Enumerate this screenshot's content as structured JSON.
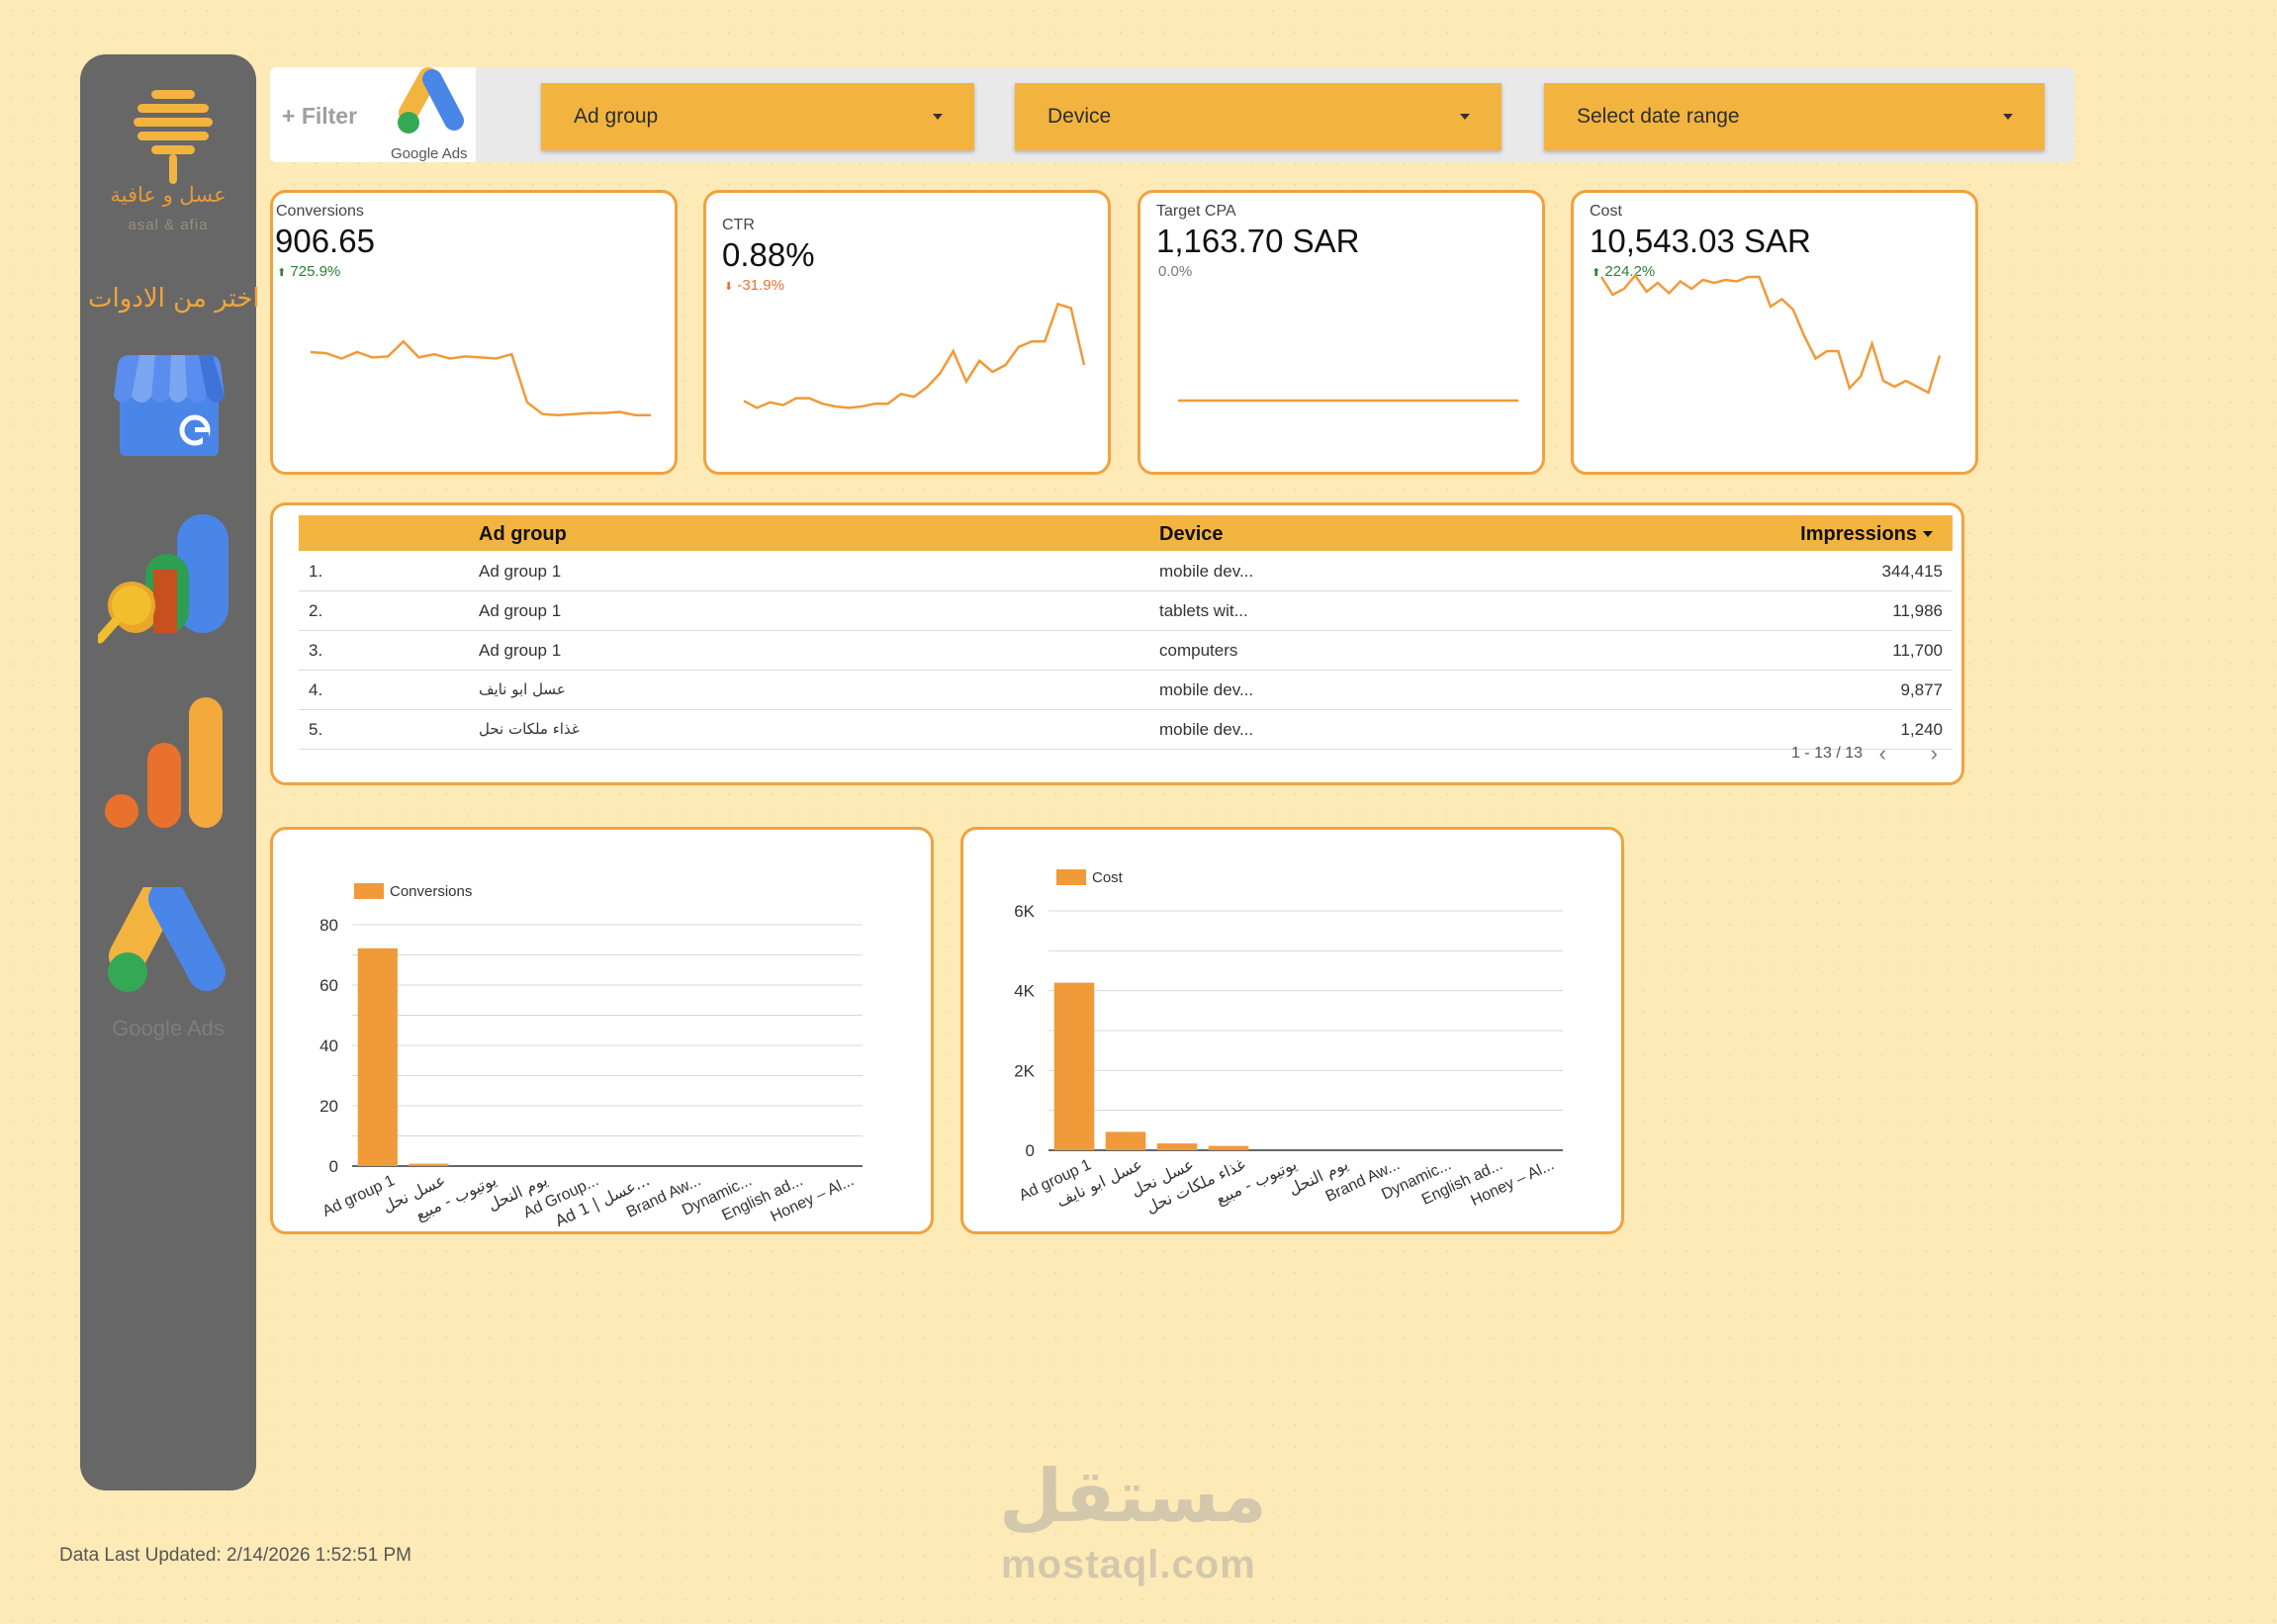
{
  "sidebar": {
    "brand_ar": "عسل و عافية",
    "brand_en": "asal & afia",
    "tools_label": "اختر من الادوات",
    "tools": [
      {
        "icon": "google-my-business-icon"
      },
      {
        "icon": "google-search-console-icon"
      },
      {
        "icon": "google-analytics-icon"
      },
      {
        "icon": "google-ads-icon",
        "label": "Google Ads"
      }
    ]
  },
  "filterbar": {
    "filter_label": "+ Filter",
    "ads_logo_label": "Google Ads",
    "dropdowns": [
      {
        "label": "Ad group"
      },
      {
        "label": "Device"
      },
      {
        "label": "Select date range"
      }
    ]
  },
  "kpis": [
    {
      "label": "Conversions",
      "value": "906.65",
      "delta": "725.9%",
      "delta_dir": "up",
      "delta_color": "#2e7d32",
      "spark": [
        0.62,
        0.61,
        0.56,
        0.62,
        0.57,
        0.58,
        0.72,
        0.57,
        0.6,
        0.56,
        0.58,
        0.57,
        0.56,
        0.6,
        0.15,
        0.04,
        0.03,
        0.04,
        0.05,
        0.05,
        0.06,
        0.03,
        0.03
      ]
    },
    {
      "label": "CTR",
      "value": "0.88%",
      "delta": "-31.9%",
      "delta_dir": "down",
      "delta_color": "#e8712e",
      "spark": [
        0.14,
        0.09,
        0.13,
        0.11,
        0.16,
        0.16,
        0.12,
        0.1,
        0.09,
        0.1,
        0.12,
        0.12,
        0.19,
        0.17,
        0.24,
        0.34,
        0.5,
        0.28,
        0.43,
        0.35,
        0.4,
        0.53,
        0.57,
        0.57,
        0.84,
        0.81,
        0.4
      ]
    },
    {
      "label": "Target CPA",
      "value": "1,163.70 SAR",
      "delta": "0.0%",
      "delta_dir": "flat",
      "delta_color": "#777777",
      "spark": [
        0.5,
        0.5
      ]
    },
    {
      "label": "Cost",
      "value": "10,543.03 SAR",
      "delta": "224.2%",
      "delta_dir": "up",
      "delta_color": "#2e7d32",
      "spark": [
        0.9,
        0.78,
        0.82,
        0.91,
        0.8,
        0.86,
        0.79,
        0.87,
        0.82,
        0.88,
        0.86,
        0.88,
        0.87,
        0.9,
        0.9,
        0.7,
        0.75,
        0.68,
        0.5,
        0.35,
        0.4,
        0.4,
        0.15,
        0.23,
        0.45,
        0.2,
        0.16,
        0.2,
        0.16,
        0.12,
        0.37
      ]
    }
  ],
  "table": {
    "headers": {
      "ad_group": "Ad group",
      "device": "Device",
      "impressions": "Impressions"
    },
    "rows": [
      {
        "n": "1.",
        "ad_group": "Ad group 1",
        "device": "mobile dev...",
        "impressions": "344,415"
      },
      {
        "n": "2.",
        "ad_group": "Ad group 1",
        "device": "tablets wit...",
        "impressions": "11,986"
      },
      {
        "n": "3.",
        "ad_group": "Ad group 1",
        "device": "computers",
        "impressions": "11,700"
      },
      {
        "n": "4.",
        "ad_group": "عسل ابو نايف",
        "device": "mobile dev...",
        "impressions": "9,877"
      },
      {
        "n": "5.",
        "ad_group": "غذاء ملكات نحل",
        "device": "mobile dev...",
        "impressions": "1,240"
      }
    ],
    "pager": "1 - 13 / 13"
  },
  "chart_data": [
    {
      "type": "bar",
      "series": [
        {
          "name": "Conversions",
          "values": [
            72.2,
            0.8,
            0,
            0,
            0,
            0,
            0,
            0,
            0,
            0
          ]
        }
      ],
      "categories": [
        "Ad group 1",
        "عسل نحل",
        "يوتيوب - مبيع",
        "يوم النحل",
        "Ad Group...",
        "Ad 1 | عسل...",
        "Brand Aw...",
        "Dynamic...",
        "English ad...",
        "Honey – Al..."
      ],
      "ylim": [
        0,
        80
      ],
      "yticks": [
        "0",
        "20",
        "40",
        "60",
        "80"
      ],
      "color": "#f09a39",
      "legend": "top-left"
    },
    {
      "type": "bar",
      "series": [
        {
          "name": "Cost",
          "values": [
            4200,
            460,
            170,
            110,
            0,
            0,
            0,
            0,
            0,
            0
          ]
        }
      ],
      "categories": [
        "Ad group 1",
        "عسل ابو نايف",
        "عسل نحل",
        "غذاء ملكات نحل",
        "يوتيوب - مبيع",
        "يوم النحل",
        "Brand Aw...",
        "Dynamic...",
        "English ad...",
        "Honey – Al..."
      ],
      "ylim": [
        0,
        6000
      ],
      "yticks": [
        "0",
        "2K",
        "4K",
        "6K"
      ],
      "color": "#f09a39",
      "legend": "top-left"
    }
  ],
  "footer": {
    "updated": "Data Last Updated: 2/14/2026 1:52:51 PM"
  },
  "watermark": {
    "ar": "مستقل",
    "en": "mostaql.com"
  }
}
